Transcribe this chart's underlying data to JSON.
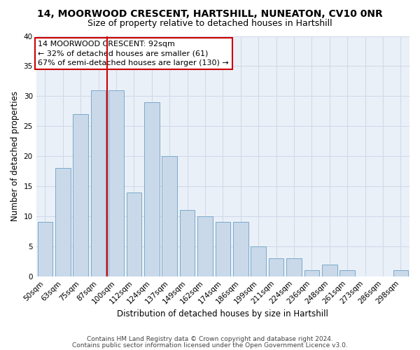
{
  "title": "14, MOORWOOD CRESCENT, HARTSHILL, NUNEATON, CV10 0NR",
  "subtitle": "Size of property relative to detached houses in Hartshill",
  "xlabel": "Distribution of detached houses by size in Hartshill",
  "ylabel": "Number of detached properties",
  "categories": [
    "50sqm",
    "63sqm",
    "75sqm",
    "87sqm",
    "100sqm",
    "112sqm",
    "124sqm",
    "137sqm",
    "149sqm",
    "162sqm",
    "174sqm",
    "186sqm",
    "199sqm",
    "211sqm",
    "224sqm",
    "236sqm",
    "248sqm",
    "261sqm",
    "273sqm",
    "286sqm",
    "298sqm"
  ],
  "values": [
    9,
    18,
    27,
    31,
    31,
    14,
    29,
    20,
    11,
    10,
    9,
    9,
    5,
    3,
    3,
    1,
    2,
    1,
    0,
    0,
    1
  ],
  "bar_color": "#c9d9ea",
  "bar_edgecolor": "#7baac8",
  "vline_x": 3.5,
  "vline_color": "#cc0000",
  "annotation_text": "14 MOORWOOD CRESCENT: 92sqm\n← 32% of detached houses are smaller (61)\n67% of semi-detached houses are larger (130) →",
  "annotation_box_color": "#ffffff",
  "annotation_box_edgecolor": "#cc0000",
  "ylim": [
    0,
    40
  ],
  "yticks": [
    0,
    5,
    10,
    15,
    20,
    25,
    30,
    35,
    40
  ],
  "grid_color": "#d0d8e8",
  "bg_color": "#eaf0f8",
  "footer1": "Contains HM Land Registry data © Crown copyright and database right 2024.",
  "footer2": "Contains public sector information licensed under the Open Government Licence v3.0.",
  "title_fontsize": 10,
  "subtitle_fontsize": 9,
  "axis_label_fontsize": 8.5,
  "tick_fontsize": 7.5,
  "annotation_fontsize": 8,
  "footer_fontsize": 6.5
}
